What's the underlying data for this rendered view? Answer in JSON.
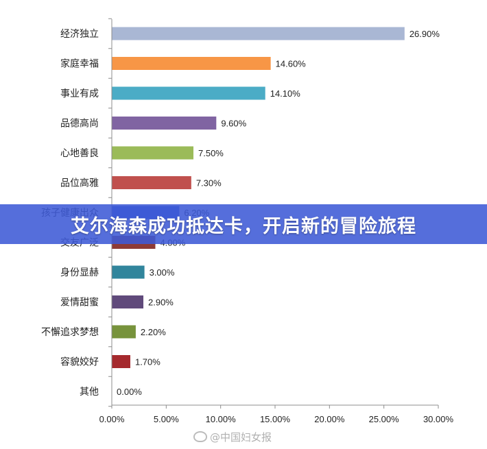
{
  "chart_data": {
    "type": "bar",
    "orientation": "horizontal",
    "categories": [
      "经济独立",
      "家庭幸福",
      "事业有成",
      "品德高尚",
      "心地善良",
      "品位高雅",
      "孩子健康出众",
      "交友广泛",
      "身份显赫",
      "爱情甜蜜",
      "不懈追求梦想",
      "容貌姣好",
      "其他"
    ],
    "values": [
      26.9,
      14.6,
      14.1,
      9.6,
      7.5,
      7.3,
      6.2,
      4.0,
      3.0,
      2.9,
      2.2,
      1.7,
      0.0
    ],
    "value_labels": [
      "26.90%",
      "14.60%",
      "14.10%",
      "9.60%",
      "7.50%",
      "7.30%",
      "6.20%",
      "4.00%",
      "3.00%",
      "2.90%",
      "2.20%",
      "1.70%",
      "0.00%"
    ],
    "colors": [
      "#A9B7D4",
      "#F79646",
      "#4BACC6",
      "#8064A2",
      "#9BBB59",
      "#C0504D",
      "#3B5BD0",
      "#8E3B36",
      "#31859C",
      "#604A7B",
      "#77933C",
      "#A5292D",
      "#4F81BD"
    ],
    "xlim": [
      0,
      30
    ],
    "xticks": [
      "0.00%",
      "5.00%",
      "10.00%",
      "15.00%",
      "20.00%",
      "25.00%",
      "30.00%"
    ],
    "grid": false,
    "legend": "none"
  },
  "banner": {
    "text": "艾尔海森成功抵达卡，开启新的冒险旅程"
  },
  "watermark": {
    "text": "@中国妇女报",
    "icon": "weibo-icon"
  }
}
